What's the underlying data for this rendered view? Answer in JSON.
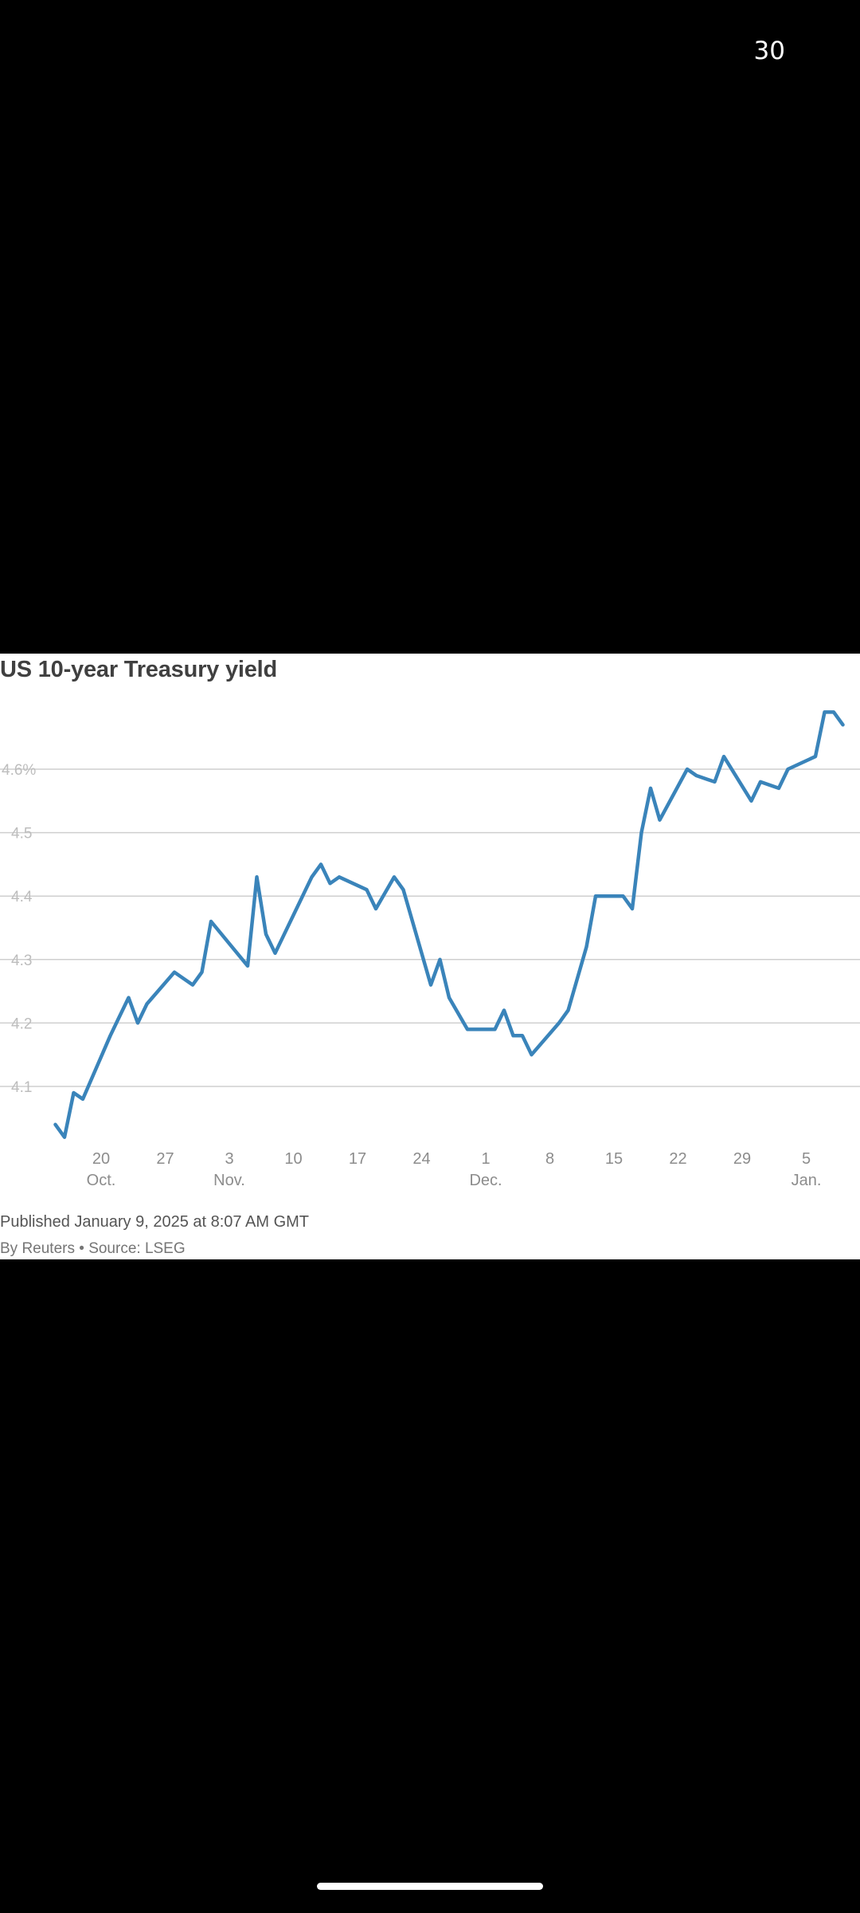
{
  "status": {
    "counter": "30"
  },
  "chart_data": {
    "type": "line",
    "title": "US 10-year Treasury yield",
    "xlabel": "",
    "ylabel": "",
    "ylim": [
      4.0,
      4.72
    ],
    "yticks": [
      {
        "value": 4.1,
        "label": "4.1"
      },
      {
        "value": 4.2,
        "label": "4.2"
      },
      {
        "value": 4.3,
        "label": "4.3"
      },
      {
        "value": 4.4,
        "label": "4.4"
      },
      {
        "value": 4.5,
        "label": "4.5"
      },
      {
        "value": 4.6,
        "label": "4.6%"
      }
    ],
    "xticks": [
      {
        "date": "2024-10-20",
        "day": "20",
        "month": "Oct."
      },
      {
        "date": "2024-10-27",
        "day": "27",
        "month": ""
      },
      {
        "date": "2024-11-03",
        "day": "3",
        "month": "Nov."
      },
      {
        "date": "2024-11-10",
        "day": "10",
        "month": ""
      },
      {
        "date": "2024-11-17",
        "day": "17",
        "month": ""
      },
      {
        "date": "2024-11-24",
        "day": "24",
        "month": ""
      },
      {
        "date": "2024-12-01",
        "day": "1",
        "month": "Dec."
      },
      {
        "date": "2024-12-08",
        "day": "8",
        "month": ""
      },
      {
        "date": "2024-12-15",
        "day": "15",
        "month": ""
      },
      {
        "date": "2024-12-22",
        "day": "22",
        "month": ""
      },
      {
        "date": "2024-12-29",
        "day": "29",
        "month": ""
      },
      {
        "date": "2025-01-05",
        "day": "5",
        "month": "Jan."
      }
    ],
    "grid": true,
    "color": "#3A84BA",
    "series": [
      {
        "points": [
          [
            "2024-10-15",
            4.04
          ],
          [
            "2024-10-16",
            4.02
          ],
          [
            "2024-10-17",
            4.09
          ],
          [
            "2024-10-18",
            4.08
          ],
          [
            "2024-10-21",
            4.18
          ],
          [
            "2024-10-22",
            4.21
          ],
          [
            "2024-10-23",
            4.24
          ],
          [
            "2024-10-24",
            4.2
          ],
          [
            "2024-10-25",
            4.23
          ],
          [
            "2024-10-28",
            4.28
          ],
          [
            "2024-10-29",
            4.27
          ],
          [
            "2024-10-30",
            4.26
          ],
          [
            "2024-10-31",
            4.28
          ],
          [
            "2024-11-01",
            4.36
          ],
          [
            "2024-11-05",
            4.29
          ],
          [
            "2024-11-06",
            4.43
          ],
          [
            "2024-11-07",
            4.34
          ],
          [
            "2024-11-08",
            4.31
          ],
          [
            "2024-11-12",
            4.43
          ],
          [
            "2024-11-13",
            4.45
          ],
          [
            "2024-11-14",
            4.42
          ],
          [
            "2024-11-15",
            4.43
          ],
          [
            "2024-11-18",
            4.41
          ],
          [
            "2024-11-19",
            4.38
          ],
          [
            "2024-11-21",
            4.43
          ],
          [
            "2024-11-22",
            4.41
          ],
          [
            "2024-11-25",
            4.26
          ],
          [
            "2024-11-26",
            4.3
          ],
          [
            "2024-11-27",
            4.24
          ],
          [
            "2024-11-29",
            4.19
          ],
          [
            "2024-12-02",
            4.19
          ],
          [
            "2024-12-03",
            4.22
          ],
          [
            "2024-12-04",
            4.18
          ],
          [
            "2024-12-05",
            4.18
          ],
          [
            "2024-12-06",
            4.15
          ],
          [
            "2024-12-09",
            4.2
          ],
          [
            "2024-12-10",
            4.22
          ],
          [
            "2024-12-12",
            4.32
          ],
          [
            "2024-12-13",
            4.4
          ],
          [
            "2024-12-16",
            4.4
          ],
          [
            "2024-12-17",
            4.38
          ],
          [
            "2024-12-18",
            4.5
          ],
          [
            "2024-12-19",
            4.57
          ],
          [
            "2024-12-20",
            4.52
          ],
          [
            "2024-12-23",
            4.6
          ],
          [
            "2024-12-24",
            4.59
          ],
          [
            "2024-12-26",
            4.58
          ],
          [
            "2024-12-27",
            4.62
          ],
          [
            "2024-12-30",
            4.55
          ],
          [
            "2024-12-31",
            4.58
          ],
          [
            "2025-01-02",
            4.57
          ],
          [
            "2025-01-03",
            4.6
          ],
          [
            "2025-01-06",
            4.62
          ],
          [
            "2025-01-07",
            4.69
          ],
          [
            "2025-01-08",
            4.69
          ],
          [
            "2025-01-09",
            4.67
          ]
        ]
      }
    ]
  },
  "footer": {
    "published": "Published January 9, 2025 at 8:07 AM GMT",
    "source": "By Reuters • Source: LSEG"
  }
}
